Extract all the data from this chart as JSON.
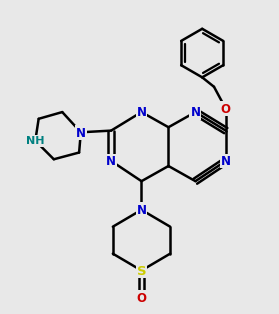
{
  "bg_color": "#e8e8e8",
  "bond_color": "#000000",
  "N_color": "#0000cc",
  "O_color": "#cc0000",
  "S_color": "#cccc00",
  "NH_color": "#008080",
  "line_width": 1.8,
  "font_size": 8.5
}
